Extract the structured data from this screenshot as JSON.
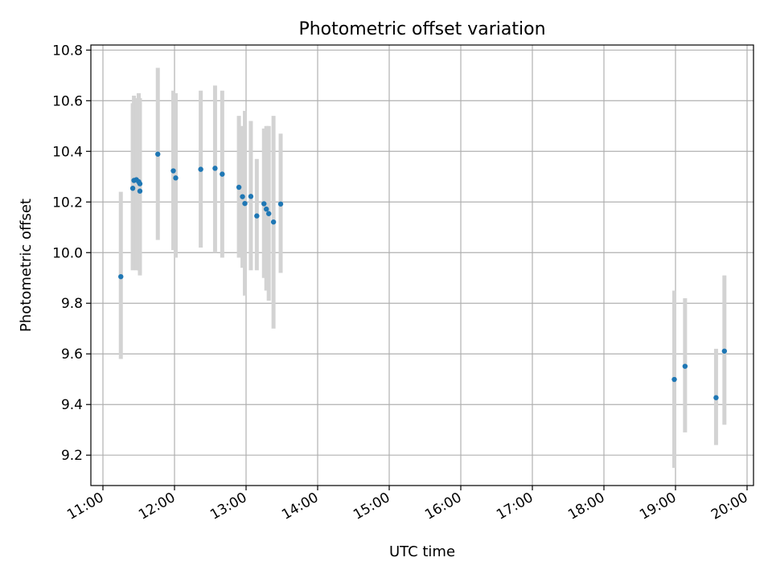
{
  "chart_data": {
    "type": "scatter",
    "title": "Photometric offset variation",
    "xlabel": "UTC time",
    "ylabel": "Photometric offset",
    "x_tick_labels": [
      "11:00",
      "12:00",
      "13:00",
      "14:00",
      "15:00",
      "16:00",
      "17:00",
      "18:00",
      "19:00",
      "20:00"
    ],
    "y_tick_labels": [
      "9.2",
      "9.4",
      "9.6",
      "9.8",
      "10.0",
      "10.2",
      "10.4",
      "10.6",
      "10.8"
    ],
    "xlim": [
      "11:00",
      "20:00"
    ],
    "ylim": [
      9.08,
      10.82
    ],
    "grid": true,
    "series": [
      {
        "points": [
          {
            "x": "11:15",
            "y": 9.905,
            "err_low": 9.58,
            "err_high": 10.24
          },
          {
            "x": "11:25",
            "y": 10.254,
            "err_low": 9.93,
            "err_high": 10.59
          },
          {
            "x": "11:26",
            "y": 10.285,
            "err_low": 9.95,
            "err_high": 10.62
          },
          {
            "x": "11:28",
            "y": 10.288,
            "err_low": 9.93,
            "err_high": 10.61
          },
          {
            "x": "11:30",
            "y": 10.28,
            "err_low": 9.93,
            "err_high": 10.63
          },
          {
            "x": "11:31",
            "y": 10.243,
            "err_low": 9.91,
            "err_high": 10.59
          },
          {
            "x": "11:31",
            "y": 10.272,
            "err_low": 9.92,
            "err_high": 10.61
          },
          {
            "x": "11:46",
            "y": 10.389,
            "err_low": 10.05,
            "err_high": 10.73
          },
          {
            "x": "11:59",
            "y": 10.323,
            "err_low": 10.01,
            "err_high": 10.64
          },
          {
            "x": "12:01",
            "y": 10.295,
            "err_low": 9.98,
            "err_high": 10.63
          },
          {
            "x": "12:22",
            "y": 10.329,
            "err_low": 10.02,
            "err_high": 10.64
          },
          {
            "x": "12:34",
            "y": 10.333,
            "err_low": 10.0,
            "err_high": 10.66
          },
          {
            "x": "12:40",
            "y": 10.31,
            "err_low": 9.98,
            "err_high": 10.64
          },
          {
            "x": "12:54",
            "y": 10.258,
            "err_low": 9.98,
            "err_high": 10.54
          },
          {
            "x": "12:57",
            "y": 10.221,
            "err_low": 9.94,
            "err_high": 10.5
          },
          {
            "x": "12:59",
            "y": 10.194,
            "err_low": 9.83,
            "err_high": 10.56
          },
          {
            "x": "13:04",
            "y": 10.222,
            "err_low": 9.93,
            "err_high": 10.52
          },
          {
            "x": "13:09",
            "y": 10.145,
            "err_low": 9.93,
            "err_high": 10.37
          },
          {
            "x": "13:15",
            "y": 10.193,
            "err_low": 9.9,
            "err_high": 10.49
          },
          {
            "x": "13:17",
            "y": 10.172,
            "err_low": 9.85,
            "err_high": 10.5
          },
          {
            "x": "13:19",
            "y": 10.154,
            "err_low": 9.81,
            "err_high": 10.5
          },
          {
            "x": "13:23",
            "y": 10.121,
            "err_low": 9.7,
            "err_high": 10.54
          },
          {
            "x": "13:29",
            "y": 10.192,
            "err_low": 9.92,
            "err_high": 10.47
          },
          {
            "x": "18:59",
            "y": 9.499,
            "err_low": 9.15,
            "err_high": 9.85
          },
          {
            "x": "19:08",
            "y": 9.551,
            "err_low": 9.29,
            "err_high": 9.82
          },
          {
            "x": "19:34",
            "y": 9.427,
            "err_low": 9.24,
            "err_high": 9.62
          },
          {
            "x": "19:41",
            "y": 9.611,
            "err_low": 9.32,
            "err_high": 9.91
          }
        ]
      }
    ],
    "colors": {
      "point": "#1f77b4",
      "errorbar": "#d3d3d3",
      "grid": "#b0b0b0",
      "axes": "#000000",
      "background": "#ffffff"
    }
  }
}
